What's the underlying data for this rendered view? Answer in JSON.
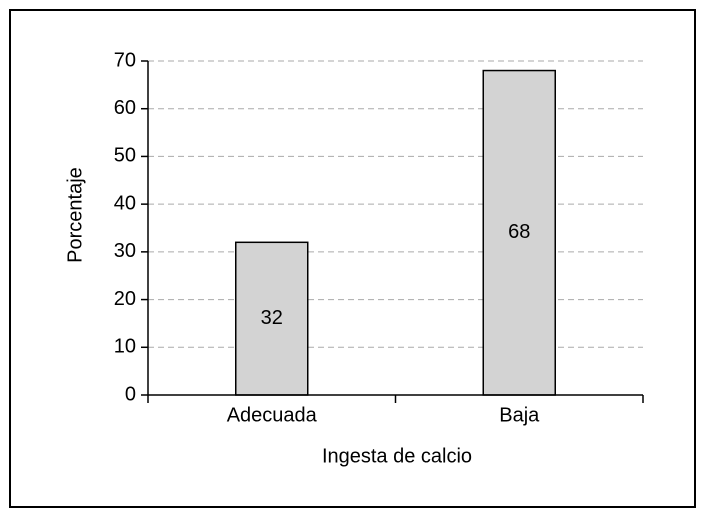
{
  "chart_data": {
    "type": "bar",
    "x_label": "Ingesta de calcio",
    "y_label": "Porcentaje",
    "categories": [
      "Adecuada",
      "Baja"
    ],
    "values": [
      32,
      68
    ],
    "color": "#d3d3d3",
    "ylim": [
      0,
      70
    ],
    "yticks": [
      0,
      10,
      20,
      30,
      40,
      50,
      60,
      70
    ],
    "grid": true
  }
}
